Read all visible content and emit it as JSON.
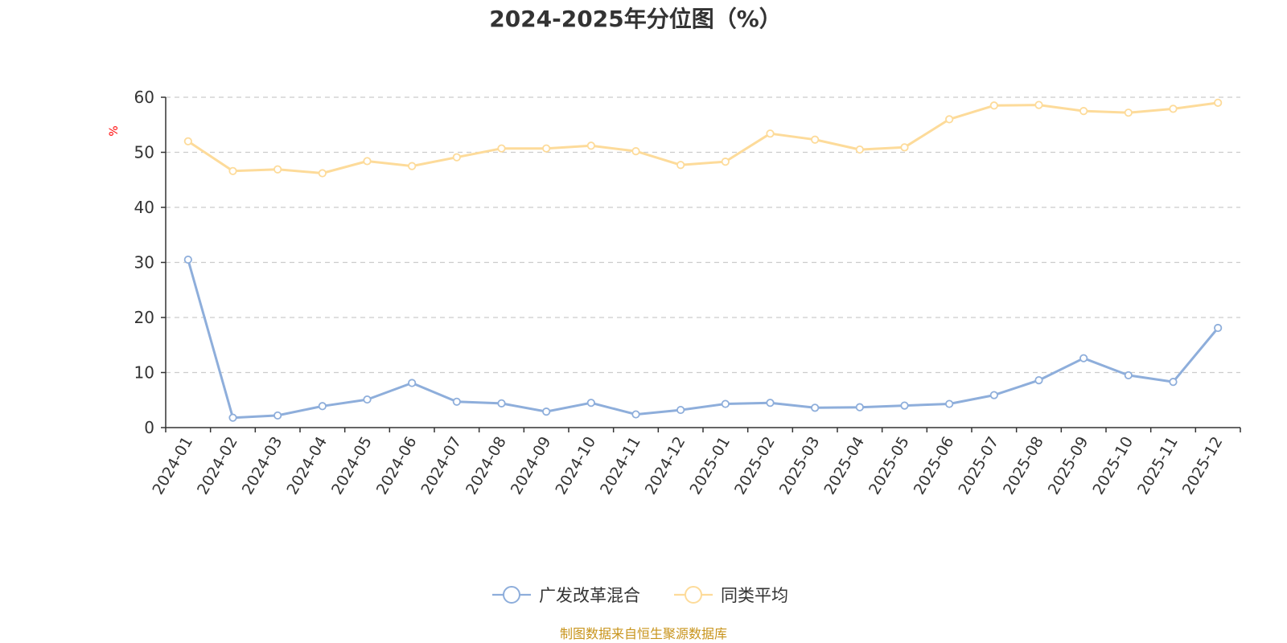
{
  "chart_data": {
    "type": "line",
    "title": "2024-2025年分位图（%）",
    "ylabel": "%",
    "ylim": [
      0,
      60
    ],
    "yticks": [
      0,
      10,
      20,
      30,
      40,
      50,
      60
    ],
    "grid": true,
    "legend_position": "bottom",
    "categories": [
      "2024-01",
      "2024-02",
      "2024-03",
      "2024-04",
      "2024-05",
      "2024-06",
      "2024-07",
      "2024-08",
      "2024-09",
      "2024-10",
      "2024-11",
      "2024-12",
      "2025-01",
      "2025-02",
      "2025-03",
      "2025-04",
      "2025-05",
      "2025-06",
      "2025-07",
      "2025-08",
      "2025-09",
      "2025-10",
      "2025-11",
      "2025-12"
    ],
    "series": [
      {
        "name": "广发改革混合",
        "color": "#8eaedb",
        "values": [
          30.5,
          1.8,
          2.2,
          3.9,
          5.1,
          8.1,
          4.7,
          4.4,
          2.9,
          4.5,
          2.4,
          3.2,
          4.3,
          4.5,
          3.6,
          3.7,
          4.0,
          4.3,
          5.9,
          8.6,
          12.6,
          9.5,
          8.3,
          18.1
        ]
      },
      {
        "name": "同类平均",
        "color": "#fddb9a",
        "values": [
          52.0,
          46.6,
          46.9,
          46.2,
          48.4,
          47.5,
          49.1,
          50.7,
          50.7,
          51.2,
          50.2,
          47.7,
          48.3,
          53.4,
          52.3,
          50.5,
          50.9,
          56.0,
          58.5,
          58.6,
          57.5,
          57.2,
          57.9,
          59.0
        ]
      }
    ]
  },
  "axis_color": "#333333",
  "grid_color": "#cccccc",
  "unit_color": "#ff0000",
  "source_text": "制图数据来自恒生聚源数据库",
  "source_color": "#c8941c"
}
